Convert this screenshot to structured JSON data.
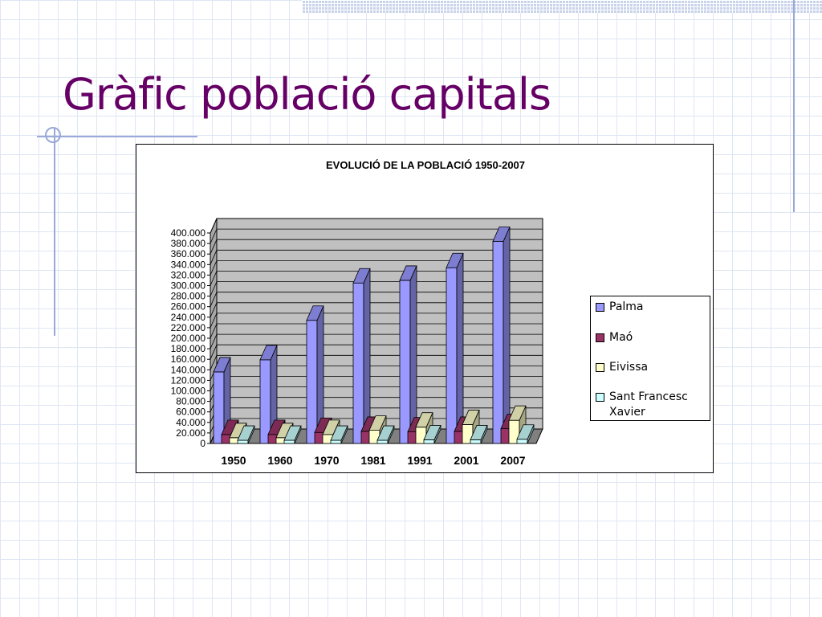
{
  "slide": {
    "title": "Gràfic població capitals"
  },
  "colors": {
    "title": "#660066",
    "palma": "#9999ff",
    "mao": "#993366",
    "eivissa": "#ffffcc",
    "sant_francesc": "#ccffff",
    "plot_wall": "#c0c0c0"
  },
  "chart_data": {
    "type": "bar",
    "title": "EVOLUCIÓ DE LA POBLACIÓ 1950-2007",
    "xlabel": "",
    "ylabel": "",
    "categories": [
      "1950",
      "1960",
      "1970",
      "1981",
      "1991",
      "2001",
      "2007"
    ],
    "ylim": [
      0,
      400000
    ],
    "ytick_step": 20000,
    "ytick_labels": [
      "0",
      "20.000",
      "40.000",
      "60.000",
      "80.000",
      "100.000",
      "120.000",
      "140.000",
      "160.000",
      "180.000",
      "200.000",
      "220.000",
      "240.000",
      "260.000",
      "280.000",
      "300.000",
      "320.000",
      "340.000",
      "360.000",
      "380.000",
      "400.000"
    ],
    "grid": true,
    "legend_position": "right",
    "series": [
      {
        "name": "Palma",
        "color": "#9999ff",
        "values": [
          136000,
          159000,
          234000,
          305000,
          310000,
          334000,
          384000
        ]
      },
      {
        "name": "Maó",
        "color": "#993366",
        "values": [
          17000,
          17000,
          21000,
          23000,
          22000,
          23000,
          28000
        ]
      },
      {
        "name": "Eivissa",
        "color": "#ffffcc",
        "values": [
          11000,
          11000,
          17000,
          25000,
          31000,
          36000,
          44000
        ]
      },
      {
        "name": "Sant Francesc Xavier",
        "color": "#ccffff",
        "values": [
          6000,
          6000,
          6000,
          6000,
          7000,
          7000,
          8000
        ]
      }
    ]
  }
}
